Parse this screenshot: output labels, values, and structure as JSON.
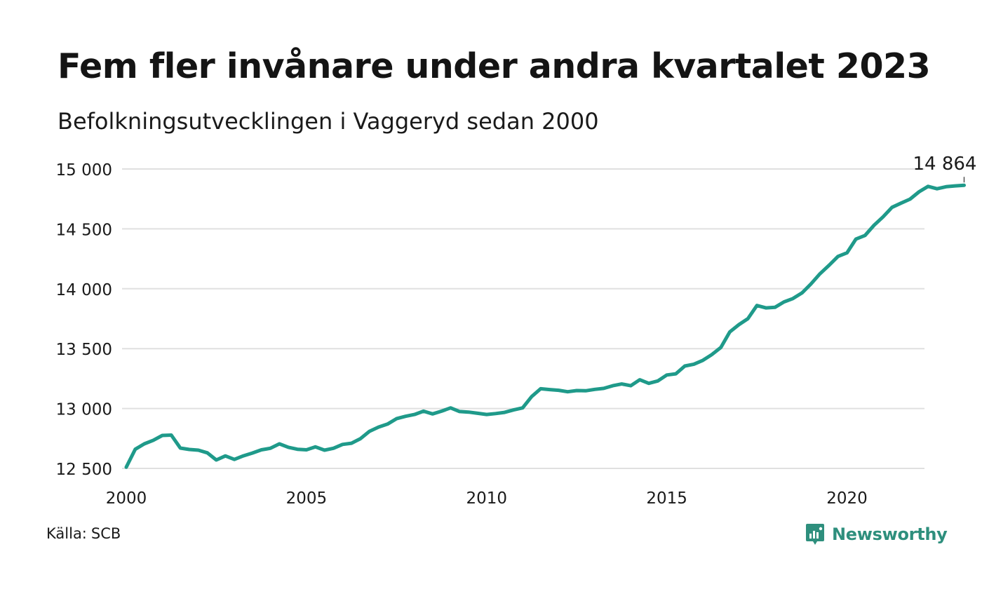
{
  "title": "Fem fler invånare under andra kvartalet 2023",
  "subtitle": "Befolkningsutvecklingen i Vaggeryd sedan 2000",
  "source": {
    "label": "Källa:",
    "name": "SCB"
  },
  "brand": {
    "name": "Newsworthy",
    "color": "#2e8f7d"
  },
  "colors": {
    "line": "#1f9a8a",
    "grid": "#e0e0e0",
    "text": "#1a1a1a"
  },
  "chart_data": {
    "type": "line",
    "title": "Fem fler invånare under andra kvartalet 2023",
    "subtitle": "Befolkningsutvecklingen i Vaggeryd sedan 2000",
    "xlabel": "",
    "ylabel": "",
    "x_ticks": [
      2000,
      2005,
      2010,
      2015,
      2020
    ],
    "x_tick_labels": [
      "2000",
      "2005",
      "2010",
      "2015",
      "2020"
    ],
    "y_ticks": [
      12500,
      13000,
      13500,
      14000,
      14500,
      15000
    ],
    "y_tick_labels": [
      "12 500",
      "13 000",
      "13 500",
      "14 000",
      "14 500",
      "15 000"
    ],
    "xlim": [
      2000,
      2024
    ],
    "ylim": [
      12500,
      15000
    ],
    "grid": "horizontal",
    "legend": "none",
    "end_label": "14 864",
    "series": [
      {
        "values": [
          [
            "2000 Q1",
            12510
          ],
          [
            "2000 Q2",
            12660
          ],
          [
            "2000 Q3",
            12705
          ],
          [
            "2000 Q4",
            12735
          ],
          [
            "2001 Q1",
            12775
          ],
          [
            "2001 Q2",
            12778
          ],
          [
            "2001 Q3",
            12670
          ],
          [
            "2001 Q4",
            12658
          ],
          [
            "2002 Q1",
            12652
          ],
          [
            "2002 Q2",
            12630
          ],
          [
            "2002 Q3",
            12570
          ],
          [
            "2002 Q4",
            12604
          ],
          [
            "2003 Q1",
            12575
          ],
          [
            "2003 Q2",
            12605
          ],
          [
            "2003 Q3",
            12628
          ],
          [
            "2003 Q4",
            12655
          ],
          [
            "2004 Q1",
            12668
          ],
          [
            "2004 Q2",
            12705
          ],
          [
            "2004 Q3",
            12676
          ],
          [
            "2004 Q4",
            12660
          ],
          [
            "2005 Q1",
            12655
          ],
          [
            "2005 Q2",
            12680
          ],
          [
            "2005 Q3",
            12652
          ],
          [
            "2005 Q4",
            12668
          ],
          [
            "2006 Q1",
            12700
          ],
          [
            "2006 Q2",
            12710
          ],
          [
            "2006 Q3",
            12748
          ],
          [
            "2006 Q4",
            12810
          ],
          [
            "2007 Q1",
            12845
          ],
          [
            "2007 Q2",
            12870
          ],
          [
            "2007 Q3",
            12915
          ],
          [
            "2007 Q4",
            12935
          ],
          [
            "2008 Q1",
            12950
          ],
          [
            "2008 Q2",
            12978
          ],
          [
            "2008 Q3",
            12955
          ],
          [
            "2008 Q4",
            12978
          ],
          [
            "2009 Q1",
            13005
          ],
          [
            "2009 Q2",
            12975
          ],
          [
            "2009 Q3",
            12970
          ],
          [
            "2009 Q4",
            12960
          ],
          [
            "2010 Q1",
            12950
          ],
          [
            "2010 Q2",
            12958
          ],
          [
            "2010 Q3",
            12968
          ],
          [
            "2010 Q4",
            12988
          ],
          [
            "2011 Q1",
            13005
          ],
          [
            "2011 Q2",
            13100
          ],
          [
            "2011 Q3",
            13165
          ],
          [
            "2011 Q4",
            13158
          ],
          [
            "2012 Q1",
            13152
          ],
          [
            "2012 Q2",
            13140
          ],
          [
            "2012 Q3",
            13150
          ],
          [
            "2012 Q4",
            13148
          ],
          [
            "2013 Q1",
            13160
          ],
          [
            "2013 Q2",
            13168
          ],
          [
            "2013 Q3",
            13190
          ],
          [
            "2013 Q4",
            13205
          ],
          [
            "2014 Q1",
            13190
          ],
          [
            "2014 Q2",
            13240
          ],
          [
            "2014 Q3",
            13210
          ],
          [
            "2014 Q4",
            13230
          ],
          [
            "2015 Q1",
            13280
          ],
          [
            "2015 Q2",
            13290
          ],
          [
            "2015 Q3",
            13355
          ],
          [
            "2015 Q4",
            13370
          ],
          [
            "2016 Q1",
            13402
          ],
          [
            "2016 Q2",
            13450
          ],
          [
            "2016 Q3",
            13510
          ],
          [
            "2016 Q4",
            13640
          ],
          [
            "2017 Q1",
            13700
          ],
          [
            "2017 Q2",
            13750
          ],
          [
            "2017 Q3",
            13860
          ],
          [
            "2017 Q4",
            13840
          ],
          [
            "2018 Q1",
            13845
          ],
          [
            "2018 Q2",
            13890
          ],
          [
            "2018 Q3",
            13918
          ],
          [
            "2018 Q4",
            13965
          ],
          [
            "2019 Q1",
            14040
          ],
          [
            "2019 Q2",
            14125
          ],
          [
            "2019 Q3",
            14195
          ],
          [
            "2019 Q4",
            14270
          ],
          [
            "2020 Q1",
            14300
          ],
          [
            "2020 Q2",
            14415
          ],
          [
            "2020 Q3",
            14445
          ],
          [
            "2020 Q4",
            14530
          ],
          [
            "2021 Q1",
            14600
          ],
          [
            "2021 Q2",
            14680
          ],
          [
            "2021 Q3",
            14715
          ],
          [
            "2021 Q4",
            14748
          ],
          [
            "2022 Q1",
            14810
          ],
          [
            "2022 Q2",
            14855
          ],
          [
            "2022 Q3",
            14835
          ],
          [
            "2022 Q4",
            14852
          ],
          [
            "2023 Q1",
            14859
          ],
          [
            "2023 Q2",
            14864
          ]
        ]
      }
    ]
  }
}
